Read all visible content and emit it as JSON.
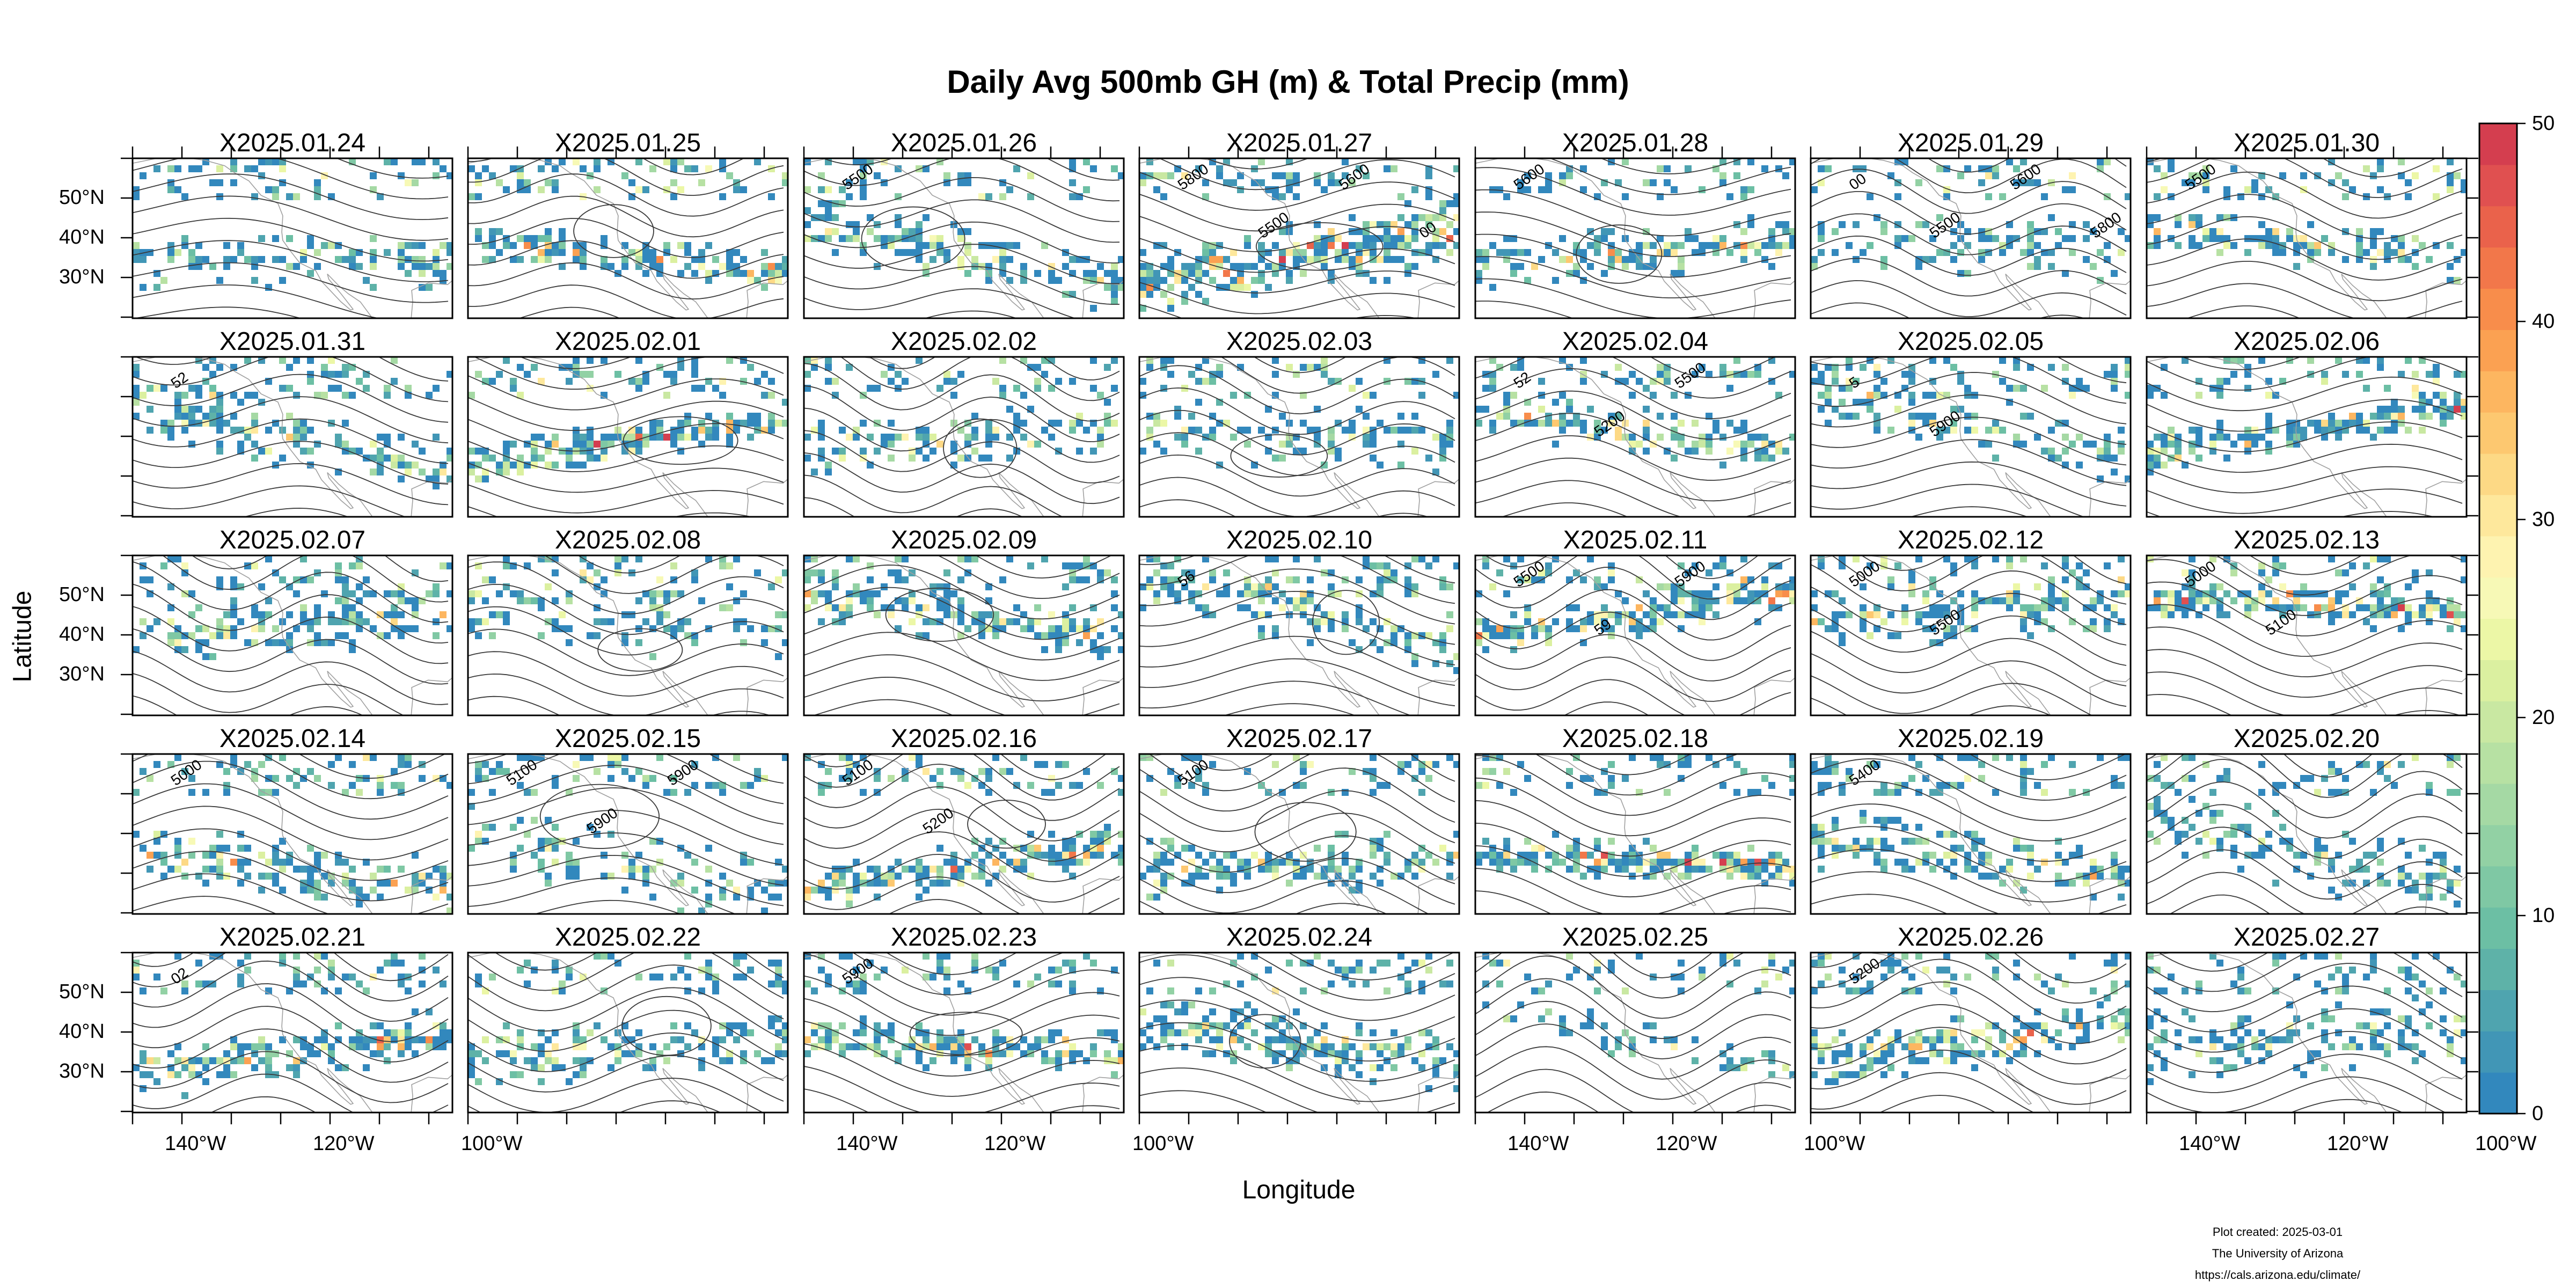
{
  "title": "Daily Avg 500mb GH (m) & Total Precip (mm)",
  "xlabel": "Longitude",
  "ylabel": "Latitude",
  "credits": [
    "Plot created: 2025-03-01",
    "The University of Arizona",
    "https://cals.arizona.edu/climate/"
  ],
  "panels": [
    "X2025.01.24",
    "X2025.01.25",
    "X2025.01.26",
    "X2025.01.27",
    "X2025.01.28",
    "X2025.01.29",
    "X2025.01.30",
    "X2025.01.31",
    "X2025.02.01",
    "X2025.02.02",
    "X2025.02.03",
    "X2025.02.04",
    "X2025.02.05",
    "X2025.02.06",
    "X2025.02.07",
    "X2025.02.08",
    "X2025.02.09",
    "X2025.02.10",
    "X2025.02.11",
    "X2025.02.12",
    "X2025.02.13",
    "X2025.02.14",
    "X2025.02.15",
    "X2025.02.16",
    "X2025.02.17",
    "X2025.02.18",
    "X2025.02.19",
    "X2025.02.20",
    "X2025.02.21",
    "X2025.02.22",
    "X2025.02.23",
    "X2025.02.24",
    "X2025.02.25",
    "X2025.02.26",
    "X2025.02.27"
  ],
  "lat_ticks": [
    "50°N",
    "40°N",
    "30°N"
  ],
  "lon_ticks": [
    "140°W",
    "120°W",
    "100°W"
  ],
  "contour_labels": {
    "X2025.01.26": [
      "5500"
    ],
    "X2025.01.27": [
      "5800",
      "5500",
      "5600",
      "00"
    ],
    "X2025.01.28": [
      "5600"
    ],
    "X2025.01.29": [
      "00",
      "5500",
      "5600",
      "5800"
    ],
    "X2025.01.30": [
      "5500"
    ],
    "X2025.01.31": [
      "52"
    ],
    "X2025.02.04": [
      "52",
      "5200",
      "5500"
    ],
    "X2025.02.05": [
      "5",
      "5900"
    ],
    "X2025.02.10": [
      "56"
    ],
    "X2025.02.11": [
      "5500",
      "59",
      "5900"
    ],
    "X2025.02.12": [
      "5000",
      "5500"
    ],
    "X2025.02.13": [
      "5000",
      "5100"
    ],
    "X2025.02.14": [
      "5000"
    ],
    "X2025.02.15": [
      "5100",
      "5900",
      "5900"
    ],
    "X2025.02.16": [
      "5100",
      "5200"
    ],
    "X2025.02.17": [
      "5100"
    ],
    "X2025.02.19": [
      "5400"
    ],
    "X2025.02.21": [
      "02"
    ],
    "X2025.02.23": [
      "5900"
    ],
    "X2025.02.26": [
      "5200"
    ]
  },
  "colorbar": {
    "label_ticks": [
      "50",
      "40",
      "30",
      "20",
      "10",
      "0"
    ],
    "min": 0,
    "max": 50,
    "step": 2.5,
    "colors_low_to_high": [
      "#3288bd",
      "#4196b6",
      "#4fa4af",
      "#5eb2a8",
      "#6cbfa4",
      "#7fc8a4",
      "#92d1a4",
      "#a5d9a4",
      "#b7e1a3",
      "#c9e8a2",
      "#dbf0a0",
      "#ecf7a6",
      "#f7f9b6",
      "#fef3b0",
      "#fee89c",
      "#fdd985",
      "#fdc870",
      "#fdb660",
      "#fba152",
      "#f88d4b",
      "#f2774a",
      "#ea624b",
      "#e05050",
      "#d43e4f"
    ]
  },
  "colors": {
    "contour": "#3a3a3a",
    "coast": "#a0a0a0",
    "frame": "#000000"
  }
}
